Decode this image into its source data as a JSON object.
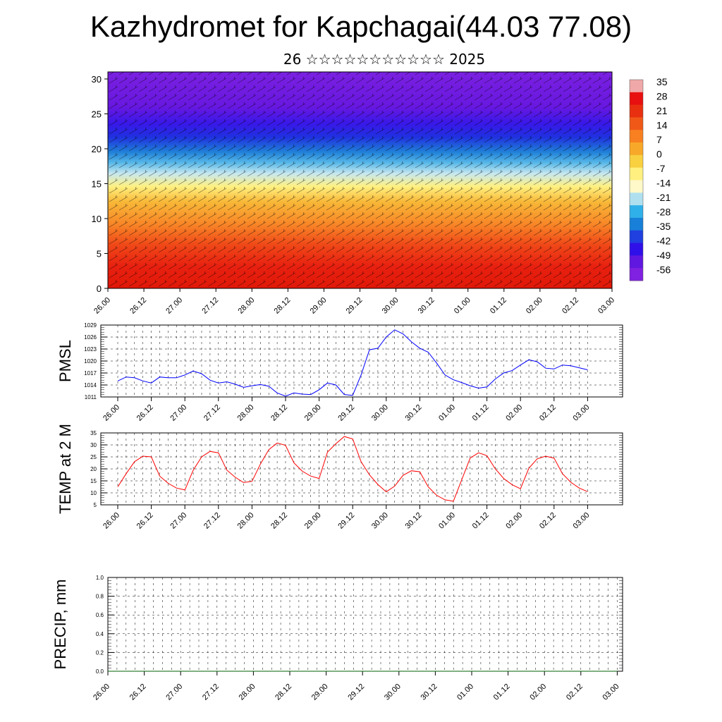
{
  "title": "Kazhydromet for Kapchagai(44.03 77.08)",
  "subtitle": "26 ☆☆☆☆☆☆☆☆☆☆☆ 2025",
  "x_tick_labels": [
    "26.00",
    "26.12",
    "27.00",
    "27.12",
    "28.00",
    "28.12",
    "29.00",
    "29.12",
    "30.00",
    "30.12",
    "01.00",
    "01.12",
    "02.00",
    "02.12",
    "03.00"
  ],
  "colorbar": {
    "labels": [
      "35",
      "28",
      "21",
      "14",
      "7",
      "0",
      "-7",
      "-14",
      "-21",
      "-28",
      "-35",
      "-42",
      "-49",
      "-56"
    ],
    "colors": [
      "#f0a8a8",
      "#e81010",
      "#e83010",
      "#f05818",
      "#f88020",
      "#f8a828",
      "#f8d040",
      "#fff080",
      "#fff8c8",
      "#b0e0f0",
      "#30b0e8",
      "#1880d8",
      "#2040e0",
      "#3010e8",
      "#6018e0",
      "#8020e0"
    ]
  },
  "chart_data": [
    {
      "type": "heatmap",
      "title": "",
      "xlabel": "",
      "ylabel": "",
      "ylim": [
        0,
        30
      ],
      "yticks": [
        0,
        5,
        10,
        15,
        20,
        25,
        30
      ],
      "x_tick_labels": [
        "26.00",
        "26.12",
        "27.00",
        "27.12",
        "28.00",
        "28.12",
        "29.00",
        "29.12",
        "30.00",
        "30.12",
        "01.00",
        "01.12",
        "02.00",
        "02.12",
        "03.00"
      ],
      "colorbar_range": [
        -56,
        35
      ],
      "overlay": "wind barbs",
      "approx_profile_level": [
        0,
        5,
        10,
        15,
        18,
        20,
        22,
        25,
        30
      ],
      "approx_profile_value": [
        30,
        25,
        14,
        2,
        -12,
        -28,
        -49,
        -56,
        -60
      ]
    },
    {
      "type": "line",
      "ylabel": "PMSL",
      "ylim": [
        1011,
        1029
      ],
      "yticks": [
        1011,
        1014,
        1017,
        1020,
        1023,
        1026,
        1029
      ],
      "x_tick_labels": [
        "26.00",
        "26.12",
        "27.00",
        "27.12",
        "28.00",
        "28.12",
        "29.00",
        "29.12",
        "30.00",
        "30.12",
        "01.00",
        "01.12",
        "02.00",
        "02.12",
        "03.00"
      ],
      "color": "#0000ff",
      "x": [
        0,
        1,
        2,
        3,
        4,
        5,
        6,
        7,
        8,
        9,
        10,
        11,
        12,
        13,
        14,
        15,
        16,
        17,
        18,
        19,
        20,
        21,
        22,
        23,
        24,
        25,
        26,
        27,
        28,
        29,
        30,
        31,
        32,
        33,
        34,
        35,
        36,
        37,
        38,
        39,
        40,
        41,
        42,
        43,
        44,
        45,
        46,
        47,
        48,
        49,
        50,
        51,
        52,
        53,
        54,
        55,
        56
      ],
      "values": [
        1015,
        1016,
        1015.8,
        1015,
        1014.5,
        1016,
        1015.8,
        1015.8,
        1016.5,
        1017.5,
        1016.8,
        1015.2,
        1014.5,
        1014.8,
        1014.2,
        1013.4,
        1013.8,
        1014.1,
        1013.7,
        1012,
        1011.2,
        1012,
        1011.7,
        1011.6,
        1012.8,
        1014.5,
        1014,
        1011.6,
        1011.4,
        1016.5,
        1022.8,
        1023.2,
        1026,
        1027.8,
        1026.8,
        1024.8,
        1023.2,
        1022.2,
        1019.5,
        1016.5,
        1015.3,
        1014.6,
        1013.8,
        1013.2,
        1013.5,
        1015.5,
        1017,
        1017.6,
        1019,
        1020.3,
        1019.8,
        1018.2,
        1018,
        1019,
        1018.8,
        1018.3,
        1017.8
      ]
    },
    {
      "type": "line",
      "ylabel": "TEMP at 2 M",
      "ylim": [
        5,
        35
      ],
      "yticks": [
        5,
        10,
        15,
        20,
        25,
        30,
        35
      ],
      "x_tick_labels": [
        "26.00",
        "26.12",
        "27.00",
        "27.12",
        "28.00",
        "28.12",
        "29.00",
        "29.12",
        "30.00",
        "30.12",
        "01.00",
        "01.12",
        "02.00",
        "02.12",
        "03.00"
      ],
      "color": "#ff0000",
      "x": [
        0,
        1,
        2,
        3,
        4,
        5,
        6,
        7,
        8,
        9,
        10,
        11,
        12,
        13,
        14,
        15,
        16,
        17,
        18,
        19,
        20,
        21,
        22,
        23,
        24,
        25,
        26,
        27,
        28,
        29,
        30,
        31,
        32,
        33,
        34,
        35,
        36,
        37,
        38,
        39,
        40,
        41,
        42,
        43,
        44,
        45,
        46,
        47,
        48,
        49,
        50,
        51,
        52,
        53,
        54,
        55,
        56
      ],
      "values": [
        12.5,
        18,
        23,
        25.3,
        25,
        17,
        14,
        12,
        11.2,
        19.5,
        25,
        27.3,
        26.7,
        19.5,
        16.5,
        14.3,
        14.8,
        22,
        28,
        30.8,
        29.8,
        22.5,
        19,
        17,
        16,
        27,
        30.5,
        33.5,
        32.5,
        23,
        17.5,
        13.5,
        10.4,
        12.8,
        17.3,
        19.2,
        18.8,
        12.5,
        9,
        7.1,
        6.5,
        15.5,
        24.5,
        26.7,
        25.5,
        20,
        16,
        13.4,
        11.7,
        20.3,
        24.2,
        25.3,
        24.5,
        18,
        14.4,
        12,
        10.5
      ]
    },
    {
      "type": "line",
      "ylabel": "PRECIP, mm",
      "ylim": [
        0,
        1
      ],
      "yticks": [
        0.0,
        0.2,
        0.4,
        0.6,
        0.8,
        1.0
      ],
      "ytick_labels": [
        "0.0",
        "0.2",
        "0.4",
        "0.6",
        "0.8",
        "1.0"
      ],
      "x_tick_labels": [
        "26.00",
        "26.12",
        "27.00",
        "27.12",
        "28.00",
        "28.12",
        "29.00",
        "29.12",
        "30.00",
        "30.12",
        "01.00",
        "01.12",
        "02.00",
        "02.12",
        "03.00"
      ],
      "color": "#006000",
      "x": [
        0,
        56
      ],
      "values": [
        0,
        0
      ]
    }
  ]
}
